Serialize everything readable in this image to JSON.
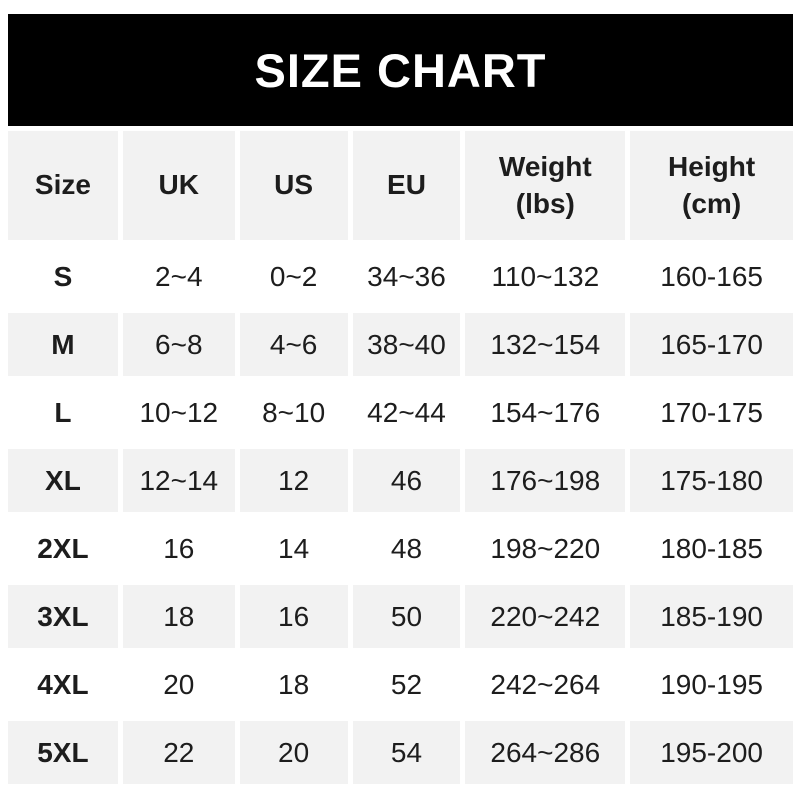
{
  "title": "SIZE CHART",
  "colors": {
    "page_bg": "#ffffff",
    "banner_bg": "#000000",
    "banner_text": "#ffffff",
    "alt_row_bg": "#f2f2f2",
    "row_bg": "#ffffff",
    "text": "#1d1d1d"
  },
  "chart_data": {
    "type": "table",
    "title": "SIZE CHART",
    "headers": [
      "Size",
      "UK",
      "US",
      "EU",
      "Weight\n(lbs)",
      "Height\n(cm)"
    ],
    "rows": [
      [
        "S",
        "2~4",
        "0~2",
        "34~36",
        "110~132",
        "160-165"
      ],
      [
        "M",
        "6~8",
        "4~6",
        "38~40",
        "132~154",
        "165-170"
      ],
      [
        "L",
        "10~12",
        "8~10",
        "42~44",
        "154~176",
        "170-175"
      ],
      [
        "XL",
        "12~14",
        "12",
        "46",
        "176~198",
        "175-180"
      ],
      [
        "2XL",
        "16",
        "14",
        "48",
        "198~220",
        "180-185"
      ],
      [
        "3XL",
        "18",
        "16",
        "50",
        "220~242",
        "185-190"
      ],
      [
        "4XL",
        "20",
        "18",
        "52",
        "242~264",
        "190-195"
      ],
      [
        "5XL",
        "22",
        "20",
        "54",
        "264~286",
        "195-200"
      ]
    ]
  },
  "table": {
    "headers": [
      "Size",
      "UK",
      "US",
      "EU",
      "Weight\n(lbs)",
      "Height\n(cm)"
    ],
    "rows": [
      [
        "S",
        "2~4",
        "0~2",
        "34~36",
        "110~132",
        "160-165"
      ],
      [
        "M",
        "6~8",
        "4~6",
        "38~40",
        "132~154",
        "165-170"
      ],
      [
        "L",
        "10~12",
        "8~10",
        "42~44",
        "154~176",
        "170-175"
      ],
      [
        "XL",
        "12~14",
        "12",
        "46",
        "176~198",
        "175-180"
      ],
      [
        "2XL",
        "16",
        "14",
        "48",
        "198~220",
        "180-185"
      ],
      [
        "3XL",
        "18",
        "16",
        "50",
        "220~242",
        "185-190"
      ],
      [
        "4XL",
        "20",
        "18",
        "52",
        "242~264",
        "190-195"
      ],
      [
        "5XL",
        "22",
        "20",
        "54",
        "264~286",
        "195-200"
      ]
    ]
  }
}
